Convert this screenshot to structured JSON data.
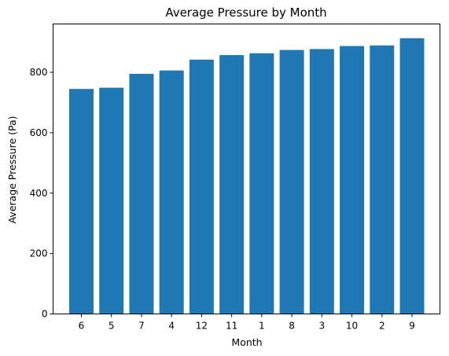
{
  "chart_data": {
    "type": "bar",
    "title": "Average Pressure by Month",
    "xlabel": "Month",
    "ylabel": "Average Pressure (Pa)",
    "categories": [
      "6",
      "5",
      "7",
      "4",
      "12",
      "11",
      "1",
      "8",
      "3",
      "10",
      "2",
      "9"
    ],
    "values": [
      745,
      749,
      795,
      806,
      842,
      857,
      863,
      874,
      877,
      887,
      889,
      913
    ],
    "ylim": [
      0,
      960
    ],
    "yticks": [
      "0",
      "200",
      "400",
      "600",
      "800"
    ],
    "bar_color": "#1f77b4",
    "grid": false
  }
}
